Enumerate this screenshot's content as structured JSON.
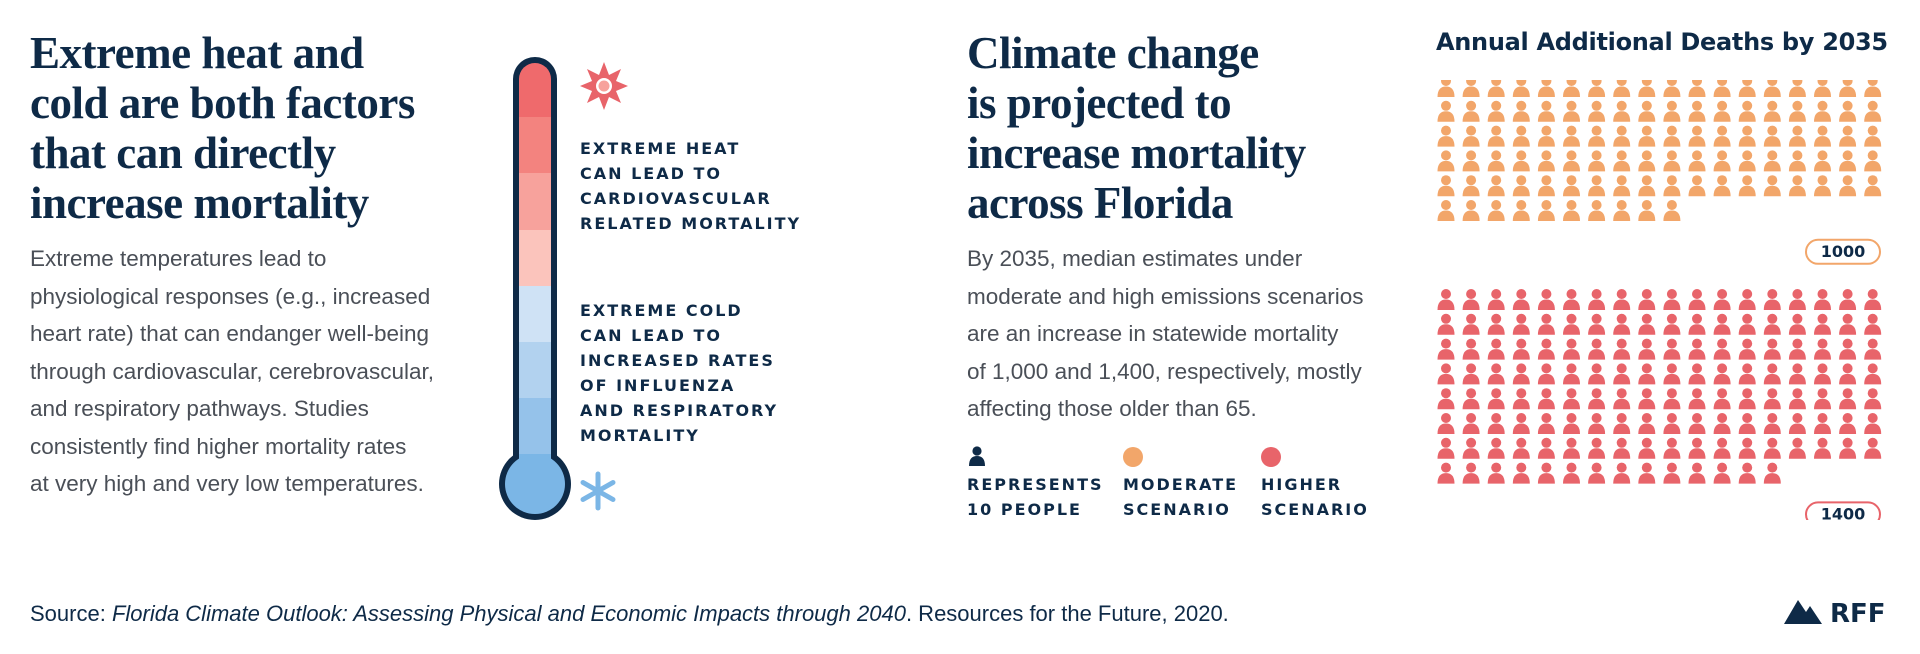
{
  "left": {
    "title": [
      "Extreme heat and",
      "cold are both factors",
      "that can directly",
      "increase mortality"
    ],
    "body": [
      "Extreme temperatures lead to",
      "physiological responses (e.g., increased",
      "heart rate) that can endanger well-being",
      "through cardiovascular, cerebrovascular,",
      "and respiratory pathways. Studies",
      "consistently find higher mortality rates",
      "at very high and very low temperatures."
    ]
  },
  "thermometer": {
    "heat_label": [
      "EXTREME HEAT",
      "CAN LEAD TO",
      "CARDIOVASCULAR",
      "RELATED MORTALITY"
    ],
    "cold_label": [
      "EXTREME COLD",
      "CAN LEAD TO",
      "INCREASED RATES",
      "OF INFLUENZA",
      "AND RESPIRATORY",
      "MORTALITY"
    ]
  },
  "right": {
    "title": [
      "Climate change",
      "is projected to",
      "increase mortality",
      "across Florida"
    ],
    "body": [
      "By 2035, median estimates under",
      "moderate and high emissions scenarios",
      "are an increase in statewide mortality",
      "of 1,000 and 1,400, respectively, mostly",
      "affecting those older than 65."
    ]
  },
  "chart_data": {
    "type": "pictogram",
    "title": "Annual Additional Deaths by 2035",
    "unit_label": "REPRESENTS 10 PEOPLE",
    "people_per_icon": 10,
    "series": [
      {
        "name": "MODERATE SCENARIO",
        "color": "#f2a66a",
        "values": [
          1000
        ]
      },
      {
        "name": "HIGHER SCENARIO",
        "color": "#e8646a",
        "values": [
          1400
        ]
      }
    ]
  },
  "source": {
    "prefix": "Source: ",
    "title": "Florida Climate Outlook: Assessing Physical and Economic Impacts through 2040",
    "suffix": ". Resources for the Future, 2020."
  },
  "logo": "RFF"
}
